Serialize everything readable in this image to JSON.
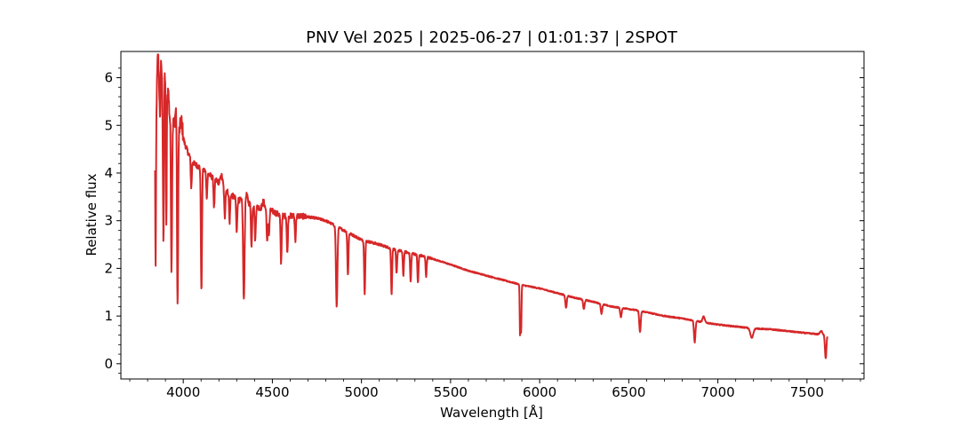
{
  "chart_data": {
    "type": "line",
    "title": "PNV Vel 2025 | 2025-06-27 | 01:01:37 | 2SPOT",
    "xlabel": "Wavelength [Å]",
    "ylabel": "Relative flux",
    "xlim": [
      3650,
      7820
    ],
    "ylim": [
      -0.32,
      6.55
    ],
    "xticks": [
      4000,
      4500,
      5000,
      5500,
      6000,
      6500,
      7000,
      7500
    ],
    "xtick_labels": [
      "4000",
      "4500",
      "5000",
      "5500",
      "6000",
      "6500",
      "7000",
      "7500"
    ],
    "yticks": [
      0,
      1,
      2,
      3,
      4,
      5,
      6
    ],
    "ytick_labels": [
      "0",
      "1",
      "2",
      "3",
      "4",
      "5",
      "6"
    ],
    "grid": false,
    "series": [
      {
        "color": "#d62728",
        "continuum": [
          [
            3842,
            5.0
          ],
          [
            3855,
            5.3
          ],
          [
            3870,
            5.5
          ],
          [
            3885,
            5.6
          ],
          [
            3900,
            5.4
          ],
          [
            3920,
            5.2
          ],
          [
            3950,
            5.0
          ],
          [
            3980,
            4.85
          ],
          [
            4000,
            4.7
          ],
          [
            4030,
            4.4
          ],
          [
            4060,
            4.2
          ],
          [
            4080,
            4.15
          ],
          [
            4120,
            4.05
          ],
          [
            4150,
            3.95
          ],
          [
            4200,
            3.8
          ],
          [
            4250,
            3.6
          ],
          [
            4300,
            3.45
          ],
          [
            4350,
            3.4
          ],
          [
            4400,
            3.3
          ],
          [
            4450,
            3.25
          ],
          [
            4500,
            3.2
          ],
          [
            4550,
            3.1
          ],
          [
            4600,
            3.1
          ],
          [
            4650,
            3.1
          ],
          [
            4700,
            3.08
          ],
          [
            4750,
            3.05
          ],
          [
            4800,
            3.0
          ],
          [
            4850,
            2.9
          ],
          [
            4900,
            2.8
          ],
          [
            4950,
            2.7
          ],
          [
            5000,
            2.6
          ],
          [
            5100,
            2.5
          ],
          [
            5200,
            2.38
          ],
          [
            5300,
            2.3
          ],
          [
            5400,
            2.2
          ],
          [
            5500,
            2.08
          ],
          [
            5600,
            1.95
          ],
          [
            5700,
            1.85
          ],
          [
            5800,
            1.75
          ],
          [
            5900,
            1.65
          ],
          [
            6000,
            1.58
          ],
          [
            6100,
            1.48
          ],
          [
            6200,
            1.38
          ],
          [
            6300,
            1.3
          ],
          [
            6400,
            1.2
          ],
          [
            6500,
            1.15
          ],
          [
            6600,
            1.08
          ],
          [
            6700,
            1.0
          ],
          [
            6800,
            0.95
          ],
          [
            6900,
            0.88
          ],
          [
            7000,
            0.82
          ],
          [
            7100,
            0.78
          ],
          [
            7200,
            0.74
          ],
          [
            7300,
            0.72
          ],
          [
            7400,
            0.68
          ],
          [
            7500,
            0.64
          ],
          [
            7560,
            0.62
          ],
          [
            7615,
            0.6
          ]
        ],
        "absorption_lines": [
          [
            3845,
            3.1,
            2
          ],
          [
            3870,
            0.8,
            2
          ],
          [
            3889,
            3.1,
            3
          ],
          [
            3905,
            2.6,
            2
          ],
          [
            3934,
            3.1,
            3
          ],
          [
            3968,
            3.9,
            3
          ],
          [
            4045,
            0.6,
            3
          ],
          [
            4102,
            2.6,
            3
          ],
          [
            4132,
            0.5,
            3
          ],
          [
            4173,
            0.6,
            3
          ],
          [
            4233,
            0.6,
            3
          ],
          [
            4260,
            0.6,
            3
          ],
          [
            4300,
            0.7,
            3
          ],
          [
            4340,
            2.1,
            4
          ],
          [
            4383,
            0.9,
            3
          ],
          [
            4404,
            0.7,
            3
          ],
          [
            4471,
            0.7,
            3
          ],
          [
            4481,
            0.5,
            3
          ],
          [
            4549,
            1.0,
            3
          ],
          [
            4584,
            0.8,
            3
          ],
          [
            4629,
            0.5,
            3
          ],
          [
            4861,
            1.7,
            4
          ],
          [
            4924,
            0.9,
            3
          ],
          [
            5018,
            1.1,
            3
          ],
          [
            5169,
            0.95,
            3
          ],
          [
            5197,
            0.5,
            3
          ],
          [
            5235,
            0.5,
            3
          ],
          [
            5276,
            0.6,
            3
          ],
          [
            5317,
            0.6,
            3
          ],
          [
            5363,
            0.4,
            3
          ],
          [
            5890,
            1.1,
            2
          ],
          [
            5896,
            1.0,
            2
          ],
          [
            6148,
            0.25,
            4
          ],
          [
            6248,
            0.2,
            4
          ],
          [
            6347,
            0.2,
            4
          ],
          [
            6456,
            0.2,
            4
          ],
          [
            6563,
            0.45,
            4
          ],
          [
            6870,
            0.45,
            4
          ],
          [
            7190,
            0.2,
            8
          ],
          [
            7605,
            0.5,
            4
          ]
        ],
        "emission_bumps": [
          [
            3858,
            1.1,
            5
          ],
          [
            3876,
            0.8,
            4
          ],
          [
            3895,
            0.7,
            4
          ],
          [
            3915,
            0.5,
            4
          ],
          [
            3960,
            0.4,
            5
          ],
          [
            3990,
            0.3,
            6
          ],
          [
            4215,
            0.2,
            6
          ],
          [
            4355,
            0.15,
            6
          ],
          [
            4450,
            0.15,
            6
          ],
          [
            6920,
            0.12,
            6
          ],
          [
            7580,
            0.08,
            6
          ]
        ]
      }
    ]
  }
}
